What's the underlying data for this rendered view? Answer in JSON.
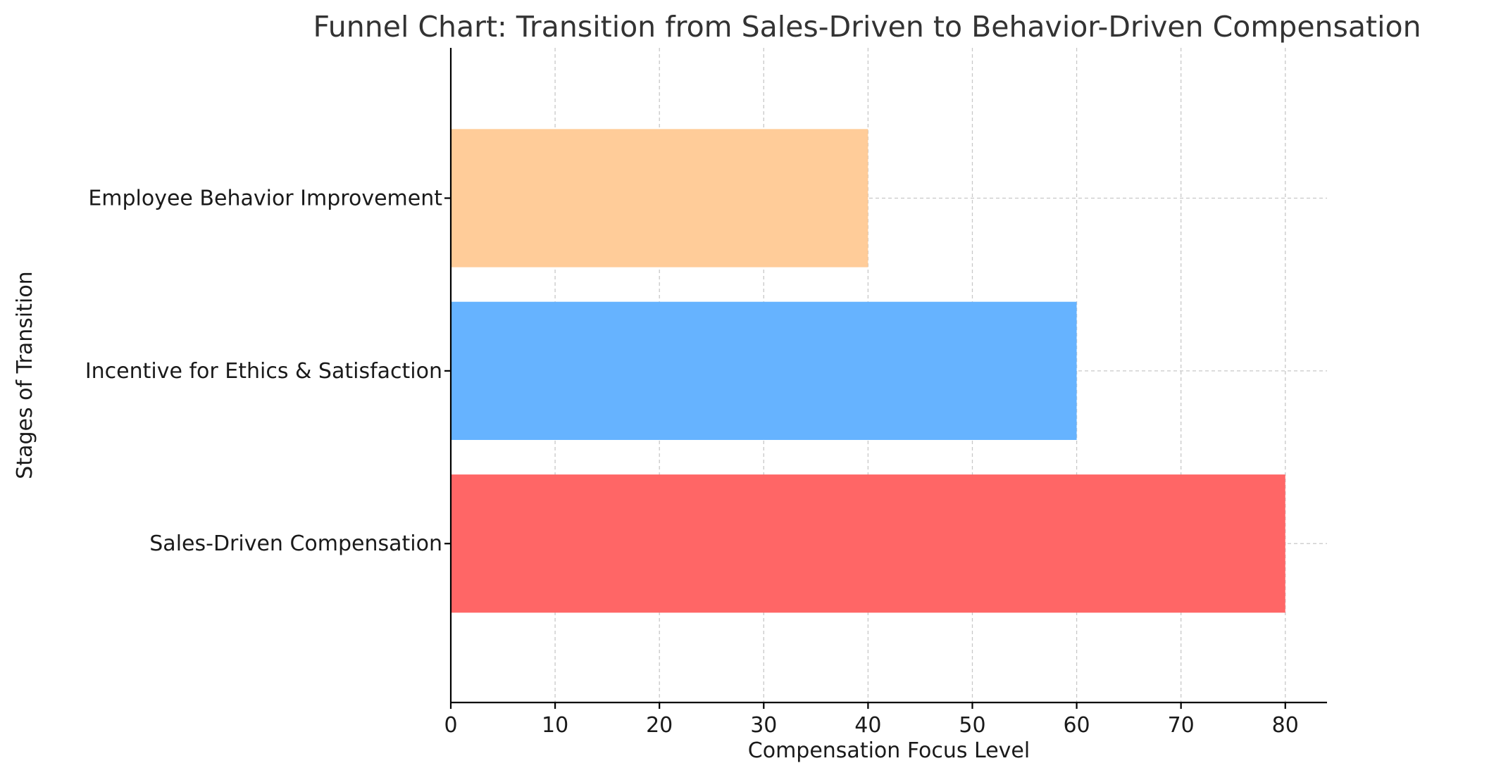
{
  "chart_data": {
    "type": "bar",
    "orientation": "horizontal",
    "title": "Funnel Chart: Transition from Sales-Driven to Behavior-Driven Compensation",
    "xlabel": "Compensation Focus Level",
    "ylabel": "Stages of Transition",
    "categories": [
      "Sales-Driven Compensation",
      "Incentive for Ethics & Satisfaction",
      "Employee Behavior Improvement"
    ],
    "values": [
      80,
      60,
      40
    ],
    "colors": [
      "#ff6666",
      "#66b3ff",
      "#ffcc99"
    ],
    "xlim": [
      0,
      84
    ],
    "xticks": [
      0,
      10,
      20,
      30,
      40,
      50,
      60,
      70,
      80
    ],
    "grid": true
  }
}
